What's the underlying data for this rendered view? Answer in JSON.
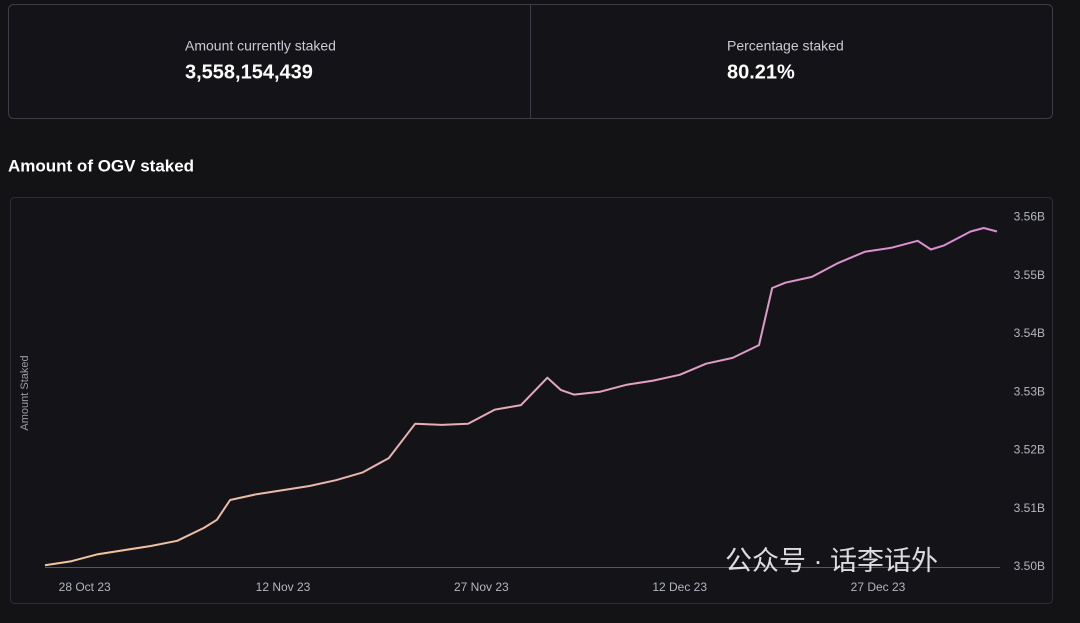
{
  "stats": [
    {
      "label": "Amount currently staked",
      "value": "3,558,154,439"
    },
    {
      "label": "Percentage staked",
      "value": "80.21%"
    }
  ],
  "chart_data": {
    "type": "line",
    "title": "Amount of OGV staked",
    "y_label": "Amount Staked",
    "x": [
      "2023-10-25",
      "2023-10-27",
      "2023-10-29",
      "2023-10-31",
      "2023-11-02",
      "2023-11-04",
      "2023-11-06",
      "2023-11-07",
      "2023-11-08",
      "2023-11-10",
      "2023-11-12",
      "2023-11-14",
      "2023-11-16",
      "2023-11-18",
      "2023-11-20",
      "2023-11-22",
      "2023-11-24",
      "2023-11-26",
      "2023-11-28",
      "2023-11-30",
      "2023-12-02",
      "2023-12-03",
      "2023-12-04",
      "2023-12-06",
      "2023-12-08",
      "2023-12-10",
      "2023-12-12",
      "2023-12-14",
      "2023-12-16",
      "2023-12-18",
      "2023-12-19",
      "2023-12-20",
      "2023-12-22",
      "2023-12-24",
      "2023-12-26",
      "2023-12-28",
      "2023-12-30",
      "2023-12-31",
      "2024-01-01",
      "2024-01-03",
      "2024-01-04",
      "2024-01-05"
    ],
    "series": [
      {
        "color": "#f3c79b",
        "color_end": "#d98ad8",
        "values": [
          3.5003,
          3.501,
          3.5022,
          3.5029,
          3.5036,
          3.5045,
          3.5067,
          3.5081,
          3.5115,
          3.5125,
          3.5132,
          3.5139,
          3.5149,
          3.5162,
          3.5187,
          3.5246,
          3.5244,
          3.5246,
          3.527,
          3.5278,
          3.5325,
          3.5304,
          3.5296,
          3.5301,
          3.5313,
          3.532,
          3.533,
          3.5349,
          3.5359,
          3.5381,
          3.5479,
          3.5488,
          3.5498,
          3.5522,
          3.5541,
          3.5548,
          3.556,
          3.5545,
          3.5552,
          3.5576,
          3.5582,
          3.5576
        ]
      }
    ],
    "xlim": [
      "2023-10-25",
      "2024-01-05"
    ],
    "xticks": [
      {
        "value": "2023-10-28",
        "label": "28 Oct 23"
      },
      {
        "value": "2023-11-12",
        "label": "12 Nov 23"
      },
      {
        "value": "2023-11-27",
        "label": "27 Nov 23"
      },
      {
        "value": "2023-12-12",
        "label": "12 Dec 23"
      },
      {
        "value": "2023-12-27",
        "label": "27 Dec 23"
      }
    ],
    "ylim": [
      3.5,
      3.563
    ],
    "yticks": [
      {
        "value": 3.5,
        "label": "3.50B"
      },
      {
        "value": 3.51,
        "label": "3.51B"
      },
      {
        "value": 3.52,
        "label": "3.52B"
      },
      {
        "value": 3.53,
        "label": "3.53B"
      },
      {
        "value": 3.54,
        "label": "3.54B"
      },
      {
        "value": 3.55,
        "label": "3.55B"
      },
      {
        "value": 3.56,
        "label": "3.56B"
      }
    ],
    "grid": false
  },
  "watermark": "公众号 · 话李话外"
}
